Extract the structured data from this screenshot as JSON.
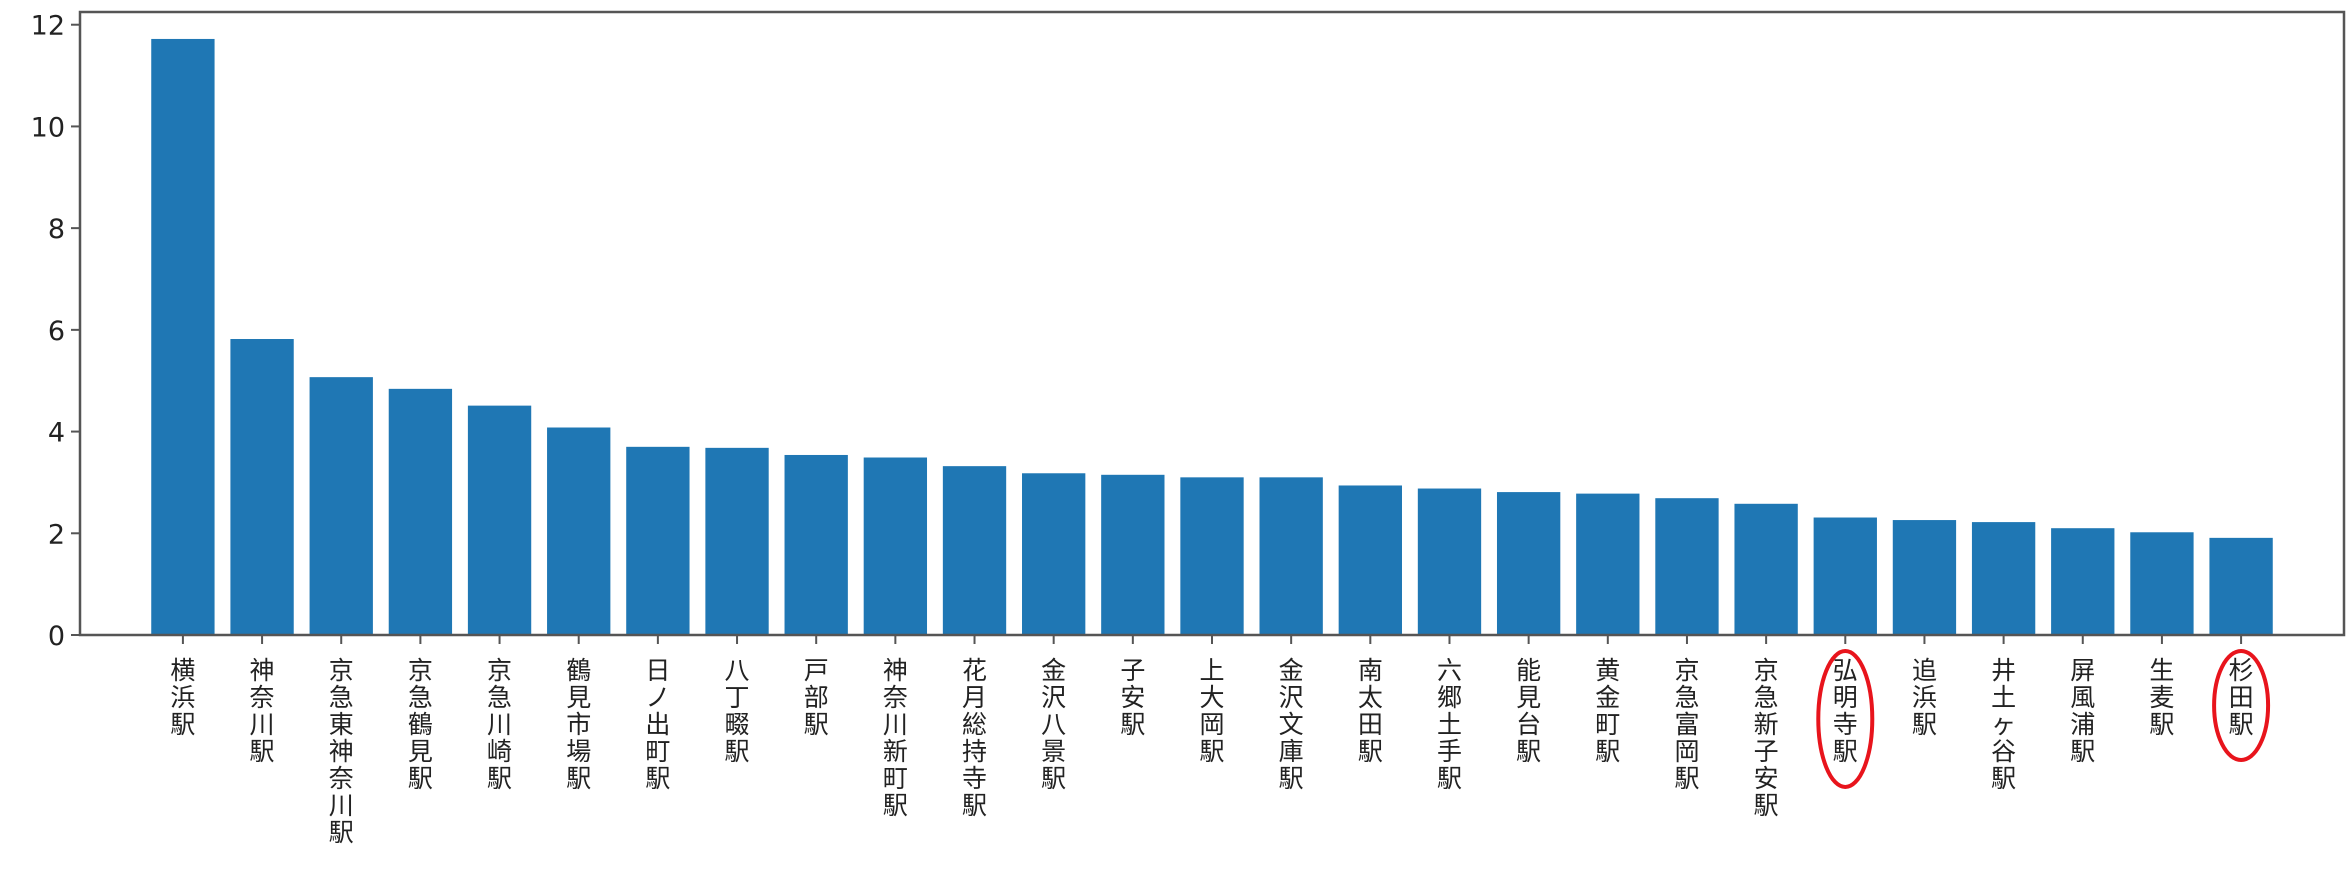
{
  "chart_data": {
    "type": "bar",
    "title": "",
    "xlabel": "",
    "ylabel": "",
    "ylim": [
      0,
      12.25
    ],
    "yticks": [
      0,
      2,
      4,
      6,
      8,
      10,
      12
    ],
    "grid": false,
    "bar_color": "#1f77b4",
    "highlight_color": "#e8141c",
    "highlighted": [
      "弘明寺駅",
      "杉田駅"
    ],
    "categories": [
      "横浜駅",
      "神奈川駅",
      "京急東神奈川駅",
      "京急鶴見駅",
      "京急川崎駅",
      "鶴見市場駅",
      "日ノ出町駅",
      "八丁畷駅",
      "戸部駅",
      "神奈川新町駅",
      "花月総持寺駅",
      "金沢八景駅",
      "子安駅",
      "上大岡駅",
      "金沢文庫駅",
      "南太田駅",
      "六郷土手駅",
      "能見台駅",
      "黄金町駅",
      "京急富岡駅",
      "京急新子安駅",
      "弘明寺駅",
      "追浜駅",
      "井土ヶ谷駅",
      "屏風浦駅",
      "生麦駅",
      "杉田駅"
    ],
    "values": [
      11.72,
      5.82,
      5.07,
      4.84,
      4.51,
      4.08,
      3.7,
      3.68,
      3.54,
      3.49,
      3.32,
      3.18,
      3.15,
      3.1,
      3.1,
      2.94,
      2.88,
      2.81,
      2.78,
      2.69,
      2.58,
      2.31,
      2.26,
      2.22,
      2.1,
      2.02,
      1.91
    ]
  }
}
